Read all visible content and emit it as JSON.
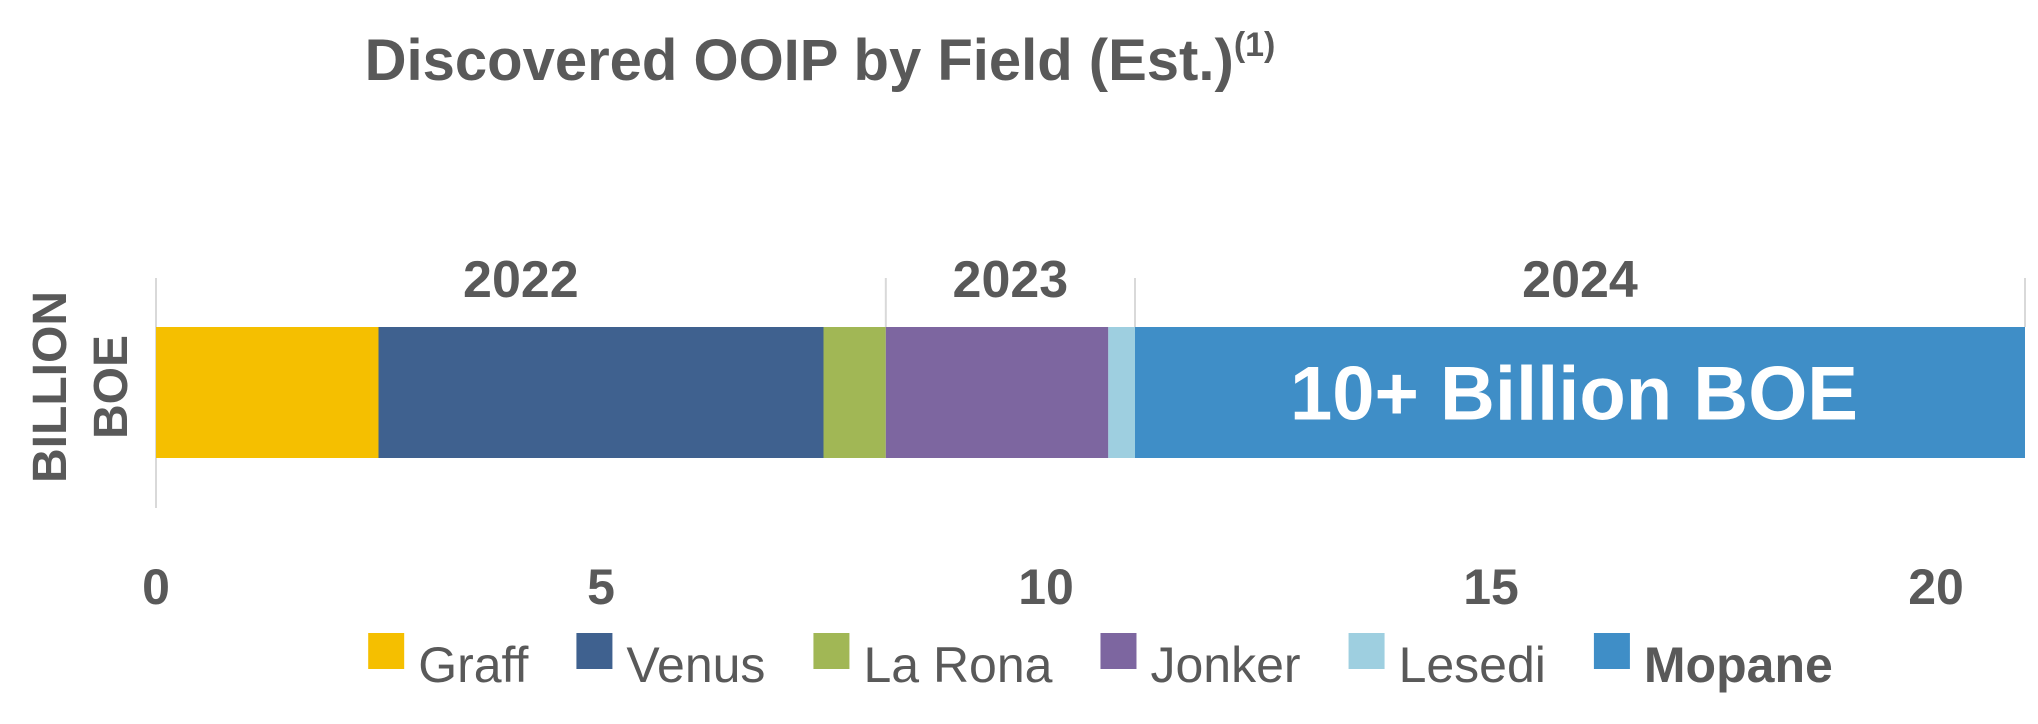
{
  "chart_data": {
    "type": "bar",
    "orientation": "horizontal",
    "stacked": true,
    "title": "Discovered OOIP by Field (Est.)",
    "title_superscript": "(1)",
    "ylabel": [
      "BILLION",
      "BOE"
    ],
    "xlim": [
      0,
      21
    ],
    "xticks": [
      "0",
      "5",
      "10",
      "15",
      "20"
    ],
    "grid": false,
    "legend_position": "bottom",
    "series": [
      {
        "name": "Graff",
        "value": 2.5,
        "color": "#f5bf00",
        "bold": false
      },
      {
        "name": "Venus",
        "value": 5.0,
        "color": "#3f618f",
        "bold": false
      },
      {
        "name": "La Rona",
        "value": 0.7,
        "color": "#a1b755",
        "bold": false
      },
      {
        "name": "Jonker",
        "value": 2.5,
        "color": "#7d66a0",
        "bold": false
      },
      {
        "name": "Lesedi",
        "value": 0.3,
        "color": "#9ecfe0",
        "bold": false
      },
      {
        "name": "Mopane",
        "value": 10.0,
        "color": "#3f8ec7",
        "bold": true
      }
    ],
    "periods": [
      {
        "label": "2022",
        "start": 0,
        "end": 8.2
      },
      {
        "label": "2023",
        "start": 8.2,
        "end": 11.0
      },
      {
        "label": "2024",
        "start": 11.0,
        "end": 21
      }
    ],
    "annotations": [
      {
        "text": "10+ Billion BOE",
        "series": "Mopane"
      }
    ]
  }
}
